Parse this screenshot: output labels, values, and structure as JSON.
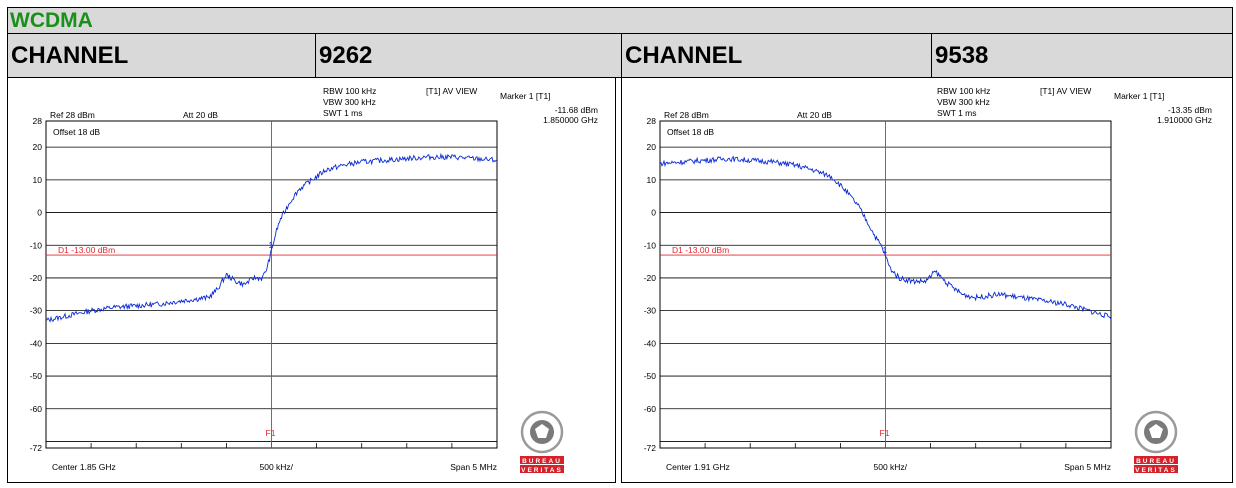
{
  "banner": {
    "title": "WCDMA"
  },
  "channel_row": {
    "left_label": "CHANNEL",
    "left_value": "9262",
    "right_label": "CHANNEL",
    "right_value": "9538"
  },
  "colors": {
    "trace": "#0b2bd6",
    "marker_line": "#e8252b",
    "grid": "#000000",
    "banner_text": "#1a8f1a",
    "bv_red": "#d6202a"
  },
  "logo": {
    "name": "bureau-veritas-logo",
    "text_top": "BUREAU",
    "text_bottom": "VERITAS"
  },
  "chart_data": [
    {
      "type": "line",
      "title": "",
      "ref": "Ref 28 dBm",
      "att": "Att  20 dB",
      "offset": "Offset 18 dB",
      "rbw": "RBW 100 kHz",
      "vbw": "VBW 300 kHz",
      "swt": "SWT 1 ms",
      "view": "[T1] AV VIEW",
      "marker_label": "Marker 1 [T1]",
      "marker_level": "-11.68 dBm",
      "marker_freq": "1.850000 GHz",
      "d1_label": "D1 -13.00 dBm",
      "d1_value": -13,
      "f1_label": "F1",
      "center_label": "Center 1.85 GHz",
      "div_label": "500 kHz/",
      "span_label": "Span 5 MHz",
      "y_ticks": [
        "28",
        "20",
        "10",
        "0",
        "-10",
        "-20",
        "-30",
        "-40",
        "-50",
        "-60",
        "-72"
      ],
      "ylim": [
        -72,
        28
      ],
      "xlim_mhz": [
        1847.5,
        1852.5
      ],
      "marker_x_mhz": 1850.0,
      "marker_y_dbm": -11.68,
      "x_mhz": [
        1847.5,
        1847.75,
        1848.0,
        1848.25,
        1848.5,
        1848.75,
        1849.0,
        1849.15,
        1849.3,
        1849.4,
        1849.5,
        1849.6,
        1849.7,
        1849.8,
        1849.9,
        1849.95,
        1850.0,
        1850.05,
        1850.1,
        1850.2,
        1850.3,
        1850.45,
        1850.6,
        1850.8,
        1851.0,
        1851.25,
        1851.5,
        1851.75,
        1852.0,
        1852.25,
        1852.5
      ],
      "y_dbm": [
        -33,
        -31.5,
        -30,
        -29,
        -28.5,
        -28,
        -27,
        -26.5,
        -26,
        -23.5,
        -19,
        -21,
        -22,
        -20,
        -20,
        -17,
        -11.7,
        -6,
        -2,
        3,
        7,
        10,
        13,
        14.5,
        15.5,
        16,
        16.5,
        17,
        17,
        16.5,
        16
      ]
    },
    {
      "type": "line",
      "title": "",
      "ref": "Ref 28 dBm",
      "att": "Att  20 dB",
      "offset": "Offset 18 dB",
      "rbw": "RBW 100 kHz",
      "vbw": "VBW 300 kHz",
      "swt": "SWT 1 ms",
      "view": "[T1] AV VIEW",
      "marker_label": "Marker 1 [T1]",
      "marker_level": "-13.35 dBm",
      "marker_freq": "1.910000 GHz",
      "d1_label": "D1 -13.00 dBm",
      "d1_value": -13,
      "f1_label": "F1",
      "center_label": "Center 1.91 GHz",
      "div_label": "500 kHz/",
      "span_label": "Span 5 MHz",
      "y_ticks": [
        "28",
        "20",
        "10",
        "0",
        "-10",
        "-20",
        "-30",
        "-40",
        "-50",
        "-60",
        "-72"
      ],
      "ylim": [
        -72,
        28
      ],
      "xlim_mhz": [
        1907.5,
        1912.5
      ],
      "marker_x_mhz": 1910.0,
      "marker_y_dbm": -13.35,
      "x_mhz": [
        1907.5,
        1907.75,
        1908.0,
        1908.25,
        1908.5,
        1908.75,
        1909.0,
        1909.2,
        1909.4,
        1909.55,
        1909.7,
        1909.8,
        1909.9,
        1909.95,
        1910.0,
        1910.05,
        1910.15,
        1910.3,
        1910.45,
        1910.55,
        1910.7,
        1910.85,
        1911.0,
        1911.25,
        1911.5,
        1911.75,
        1912.0,
        1912.25,
        1912.5
      ],
      "y_dbm": [
        15,
        15.5,
        16,
        16.5,
        16,
        15.5,
        14.5,
        13,
        11,
        7,
        2,
        -3,
        -8,
        -10,
        -13.3,
        -17,
        -20,
        -21,
        -21,
        -18,
        -22,
        -25,
        -26,
        -25,
        -26,
        -27,
        -28,
        -30,
        -32
      ]
    }
  ]
}
